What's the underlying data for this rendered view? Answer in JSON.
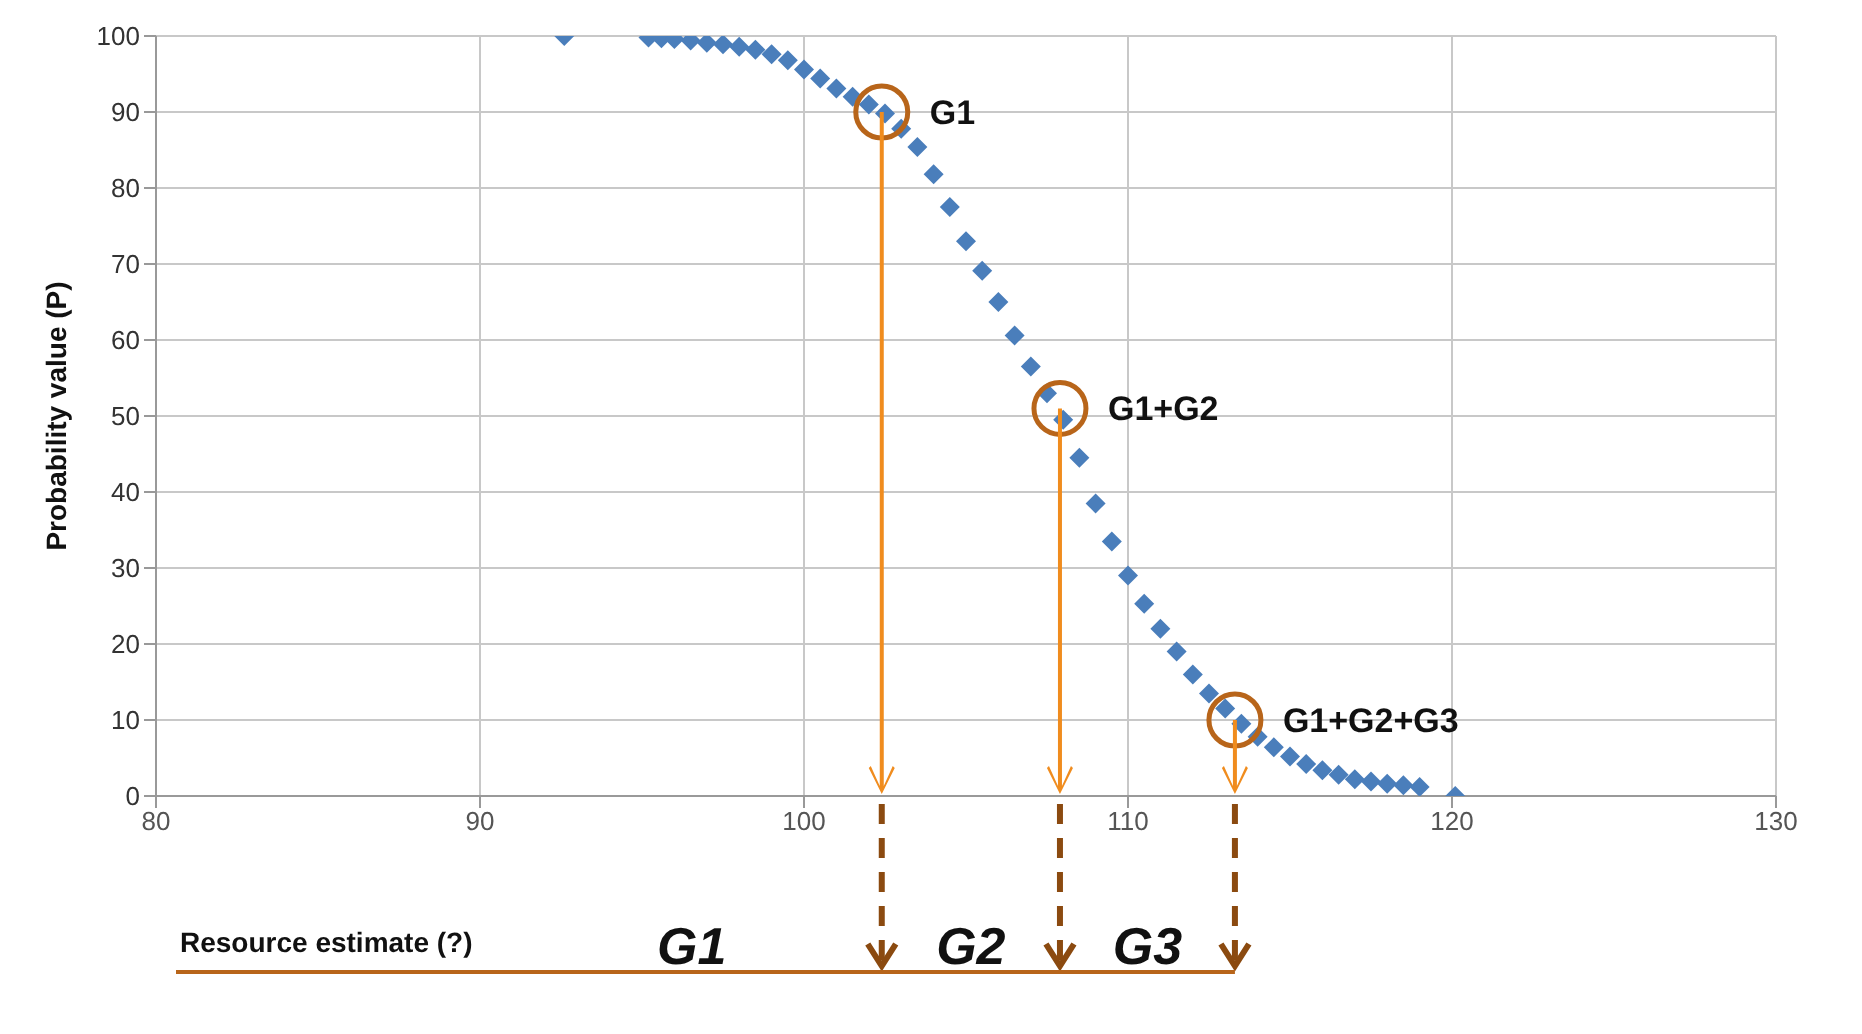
{
  "chart_data": {
    "type": "scatter",
    "ylabel": "Probability value (P)",
    "xlabel": "Resource estimate (?)",
    "xlim": [
      80,
      130
    ],
    "xticks": [
      80,
      90,
      100,
      110,
      120,
      130
    ],
    "ylim": [
      0,
      100
    ],
    "yticks": [
      0,
      10,
      20,
      30,
      40,
      50,
      60,
      70,
      80,
      90,
      100
    ],
    "grid": true,
    "legend": false,
    "marker": "diamond",
    "series": [
      {
        "color": "#4a7ebb",
        "x": [
          92.6,
          95.2,
          95.6,
          96.0,
          96.5,
          97.0,
          97.5,
          98.0,
          98.5,
          99.0,
          99.5,
          100.0,
          100.5,
          101.0,
          101.5,
          102.0,
          102.5,
          103.0,
          103.5,
          104.0,
          104.5,
          105.0,
          105.5,
          106.0,
          106.5,
          107.0,
          107.5,
          108.0,
          108.5,
          109.0,
          109.5,
          110.0,
          110.5,
          111.0,
          111.5,
          112.0,
          112.5,
          113.0,
          113.5,
          114.0,
          114.5,
          115.0,
          115.5,
          116.0,
          116.5,
          117.0,
          117.5,
          118.0,
          118.5,
          119.0,
          120.1
        ],
        "values": [
          100,
          99.8,
          99.7,
          99.6,
          99.4,
          99.1,
          98.9,
          98.6,
          98.2,
          97.6,
          96.8,
          95.6,
          94.4,
          93.1,
          92.0,
          91.0,
          89.8,
          87.8,
          85.4,
          81.8,
          77.5,
          73.0,
          69.1,
          65.0,
          60.6,
          56.5,
          53.0,
          49.5,
          44.5,
          38.5,
          33.5,
          29.0,
          25.3,
          22.0,
          19.0,
          16.0,
          13.5,
          11.5,
          9.5,
          7.8,
          6.4,
          5.2,
          4.2,
          3.4,
          2.8,
          2.2,
          1.9,
          1.6,
          1.4,
          1.2,
          0
        ]
      }
    ],
    "annotations": [
      {
        "text": "G1",
        "x": 102.4,
        "y": 90
      },
      {
        "text": "G1+G2",
        "x": 107.9,
        "y": 51
      },
      {
        "text": "G1+G2+G3",
        "x": 113.3,
        "y": 10
      },
      "G1",
      "G2",
      "G3"
    ]
  }
}
